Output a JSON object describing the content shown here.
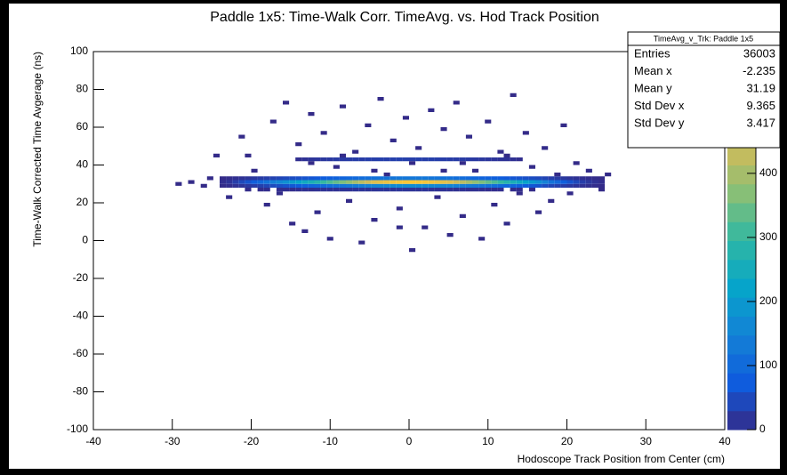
{
  "chart_data": {
    "type": "heatmap",
    "title": "Paddle 1x5: Time-Walk Corr. TimeAvg. vs. Hod Track Position",
    "x_label": "Hodoscope Track Position from Center (cm)",
    "y_label": "Time-Walk Corrected Time Avgerage (ns)",
    "xlim": [
      -40,
      40
    ],
    "ylim": [
      -100,
      100
    ],
    "xticks": [
      -40,
      -30,
      -20,
      -10,
      0,
      10,
      20,
      30,
      40
    ],
    "yticks": [
      -100,
      -80,
      -60,
      -40,
      -20,
      0,
      20,
      40,
      60,
      80,
      100
    ],
    "zlim": [
      0,
      590
    ],
    "zticks": [
      0,
      100,
      200,
      300,
      400
    ],
    "colorscale": [
      "#352a87",
      "#0f5cdd",
      "#1481d6",
      "#06a4ca",
      "#2eb7a4",
      "#87bf77",
      "#d1bb59",
      "#fec832",
      "#f9fb0e"
    ],
    "x": [
      -23.6,
      -22.8,
      -22,
      -21.2,
      -20.4,
      -19.6,
      -18.8,
      -18,
      -17.2,
      -16.4,
      -15.6,
      -14.8,
      -14,
      -13.2,
      -12.4,
      -11.6,
      -10.8,
      -10,
      -9.2,
      -8.4,
      -7.6,
      -6.8,
      -6,
      -5.2,
      -4.4,
      -3.6,
      -2.8,
      -2,
      -1.2,
      -0.4,
      0.4,
      1.2,
      2,
      2.8,
      3.6,
      4.4,
      5.2,
      6,
      6.8,
      7.6,
      8.4,
      9.2,
      10,
      10.8,
      11.6,
      12.4,
      13.2,
      14,
      14.8,
      15.6,
      16.4,
      17.2,
      18,
      18.8,
      19.6,
      20.4,
      21.2,
      22,
      22.8,
      23.6,
      24.4
    ],
    "y": [
      27,
      29,
      31,
      33,
      43
    ],
    "z": [
      [
        null,
        null,
        null,
        null,
        3,
        null,
        4,
        5,
        null,
        6,
        7,
        5,
        8,
        9,
        7,
        10,
        12,
        11,
        10,
        13,
        12,
        14,
        15,
        13,
        14,
        16,
        15,
        14,
        16,
        15,
        14,
        13,
        15,
        12,
        11,
        12,
        10,
        9,
        11,
        8,
        9,
        7,
        6,
        5,
        6,
        null,
        4,
        3,
        null,
        2,
        null,
        null,
        null,
        null,
        null,
        null,
        null,
        null,
        null,
        null,
        null
      ],
      [
        3,
        5,
        10,
        15,
        20,
        27,
        33,
        40,
        47,
        53,
        60,
        67,
        73,
        80,
        87,
        93,
        100,
        107,
        113,
        120,
        127,
        133,
        140,
        147,
        153,
        157,
        160,
        163,
        167,
        168,
        170,
        168,
        167,
        163,
        160,
        157,
        153,
        147,
        140,
        133,
        127,
        120,
        113,
        107,
        100,
        93,
        87,
        80,
        73,
        67,
        60,
        50,
        40,
        33,
        27,
        20,
        15,
        10,
        7,
        4,
        2
      ],
      [
        8,
        15,
        30,
        45,
        60,
        80,
        100,
        120,
        140,
        160,
        180,
        200,
        220,
        240,
        260,
        280,
        300,
        320,
        340,
        360,
        380,
        400,
        420,
        440,
        460,
        470,
        480,
        490,
        500,
        505,
        510,
        505,
        500,
        490,
        480,
        470,
        460,
        440,
        420,
        400,
        380,
        360,
        340,
        320,
        300,
        280,
        260,
        240,
        220,
        200,
        180,
        150,
        120,
        100,
        80,
        60,
        45,
        30,
        20,
        12,
        6
      ],
      [
        2,
        4,
        8,
        11,
        15,
        20,
        25,
        30,
        35,
        40,
        45,
        50,
        55,
        60,
        65,
        70,
        75,
        80,
        85,
        90,
        95,
        100,
        105,
        110,
        115,
        118,
        120,
        122,
        125,
        126,
        128,
        126,
        125,
        122,
        120,
        118,
        115,
        110,
        105,
        100,
        95,
        90,
        85,
        80,
        75,
        70,
        65,
        60,
        55,
        50,
        45,
        38,
        30,
        25,
        20,
        15,
        11,
        8,
        5,
        3,
        2
      ],
      [
        null,
        null,
        null,
        null,
        null,
        null,
        null,
        null,
        null,
        null,
        null,
        null,
        8,
        12,
        15,
        18,
        20,
        22,
        25,
        24,
        26,
        28,
        27,
        30,
        29,
        31,
        30,
        32,
        33,
        31,
        30,
        32,
        29,
        31,
        30,
        28,
        27,
        26,
        25,
        24,
        22,
        20,
        18,
        16,
        14,
        12,
        10,
        6,
        null,
        null,
        null,
        null,
        null,
        null,
        null,
        null,
        null,
        null,
        null,
        null,
        null
      ]
    ],
    "cells": {
      "x": [
        -27.6,
        -25.2,
        -26,
        -22.8,
        -21.2,
        -20.4,
        -19.6,
        -18,
        -17.2,
        -16.4,
        -15.6,
        -14.8,
        -14,
        -13.2,
        -12.4,
        -11.6,
        -10.8,
        -10,
        -9.2,
        -8.4,
        -7.6,
        -6.8,
        -6,
        -5.2,
        -4.4,
        -3.6,
        -2.8,
        -2,
        -1.2,
        -0.4,
        0.4,
        1.2,
        2,
        2.8,
        3.6,
        4.4,
        5.2,
        6,
        6.8,
        7.6,
        8.4,
        9.2,
        10,
        10.8,
        11.6,
        12.4,
        13.2,
        14,
        14.8,
        15.6,
        16.4,
        17.2,
        18,
        18.8,
        19.6,
        20.4,
        21.2,
        22.8,
        24.4,
        25.2,
        -29.2,
        -24.4,
        -12.4,
        -8.4,
        0.4,
        6.8,
        12.4,
        -4.4,
        4.4,
        -1.2
      ],
      "y": [
        31,
        33,
        29,
        23,
        55,
        45,
        37,
        19,
        63,
        25,
        73,
        9,
        51,
        5,
        67,
        15,
        57,
        1,
        39,
        71,
        21,
        47,
        -1,
        61,
        11,
        75,
        35,
        53,
        17,
        65,
        -5,
        49,
        7,
        69,
        23,
        59,
        3,
        73,
        13,
        55,
        37,
        1,
        63,
        19,
        47,
        9,
        77,
        25,
        57,
        39,
        15,
        49,
        21,
        35,
        61,
        25,
        41,
        37,
        27,
        35,
        30,
        45,
        41,
        45,
        41,
        41,
        45,
        37,
        37,
        7
      ],
      "values": [
        1,
        2,
        1,
        3,
        1,
        2,
        1,
        2,
        1,
        3,
        1,
        2,
        1,
        2,
        1,
        3,
        1,
        2,
        1,
        2,
        1,
        3,
        1,
        2,
        1,
        2,
        1,
        3,
        1,
        2,
        1,
        2,
        1,
        3,
        1,
        2,
        1,
        2,
        1,
        3,
        1,
        2,
        1,
        2,
        1,
        3,
        1,
        2,
        1,
        2,
        1,
        3,
        1,
        2,
        1,
        2,
        1,
        3,
        1,
        2,
        1,
        2,
        1,
        3,
        1,
        2,
        1,
        2,
        1,
        3
      ]
    },
    "stats": {
      "title": "TimeAvg_v_Trk: Paddle 1x5",
      "labels": [
        "Entries",
        "Mean x",
        "Mean y",
        "Std Dev x",
        "Std Dev y"
      ],
      "values": [
        36003,
        -2.235,
        31.19,
        9.365,
        3.417
      ]
    }
  }
}
